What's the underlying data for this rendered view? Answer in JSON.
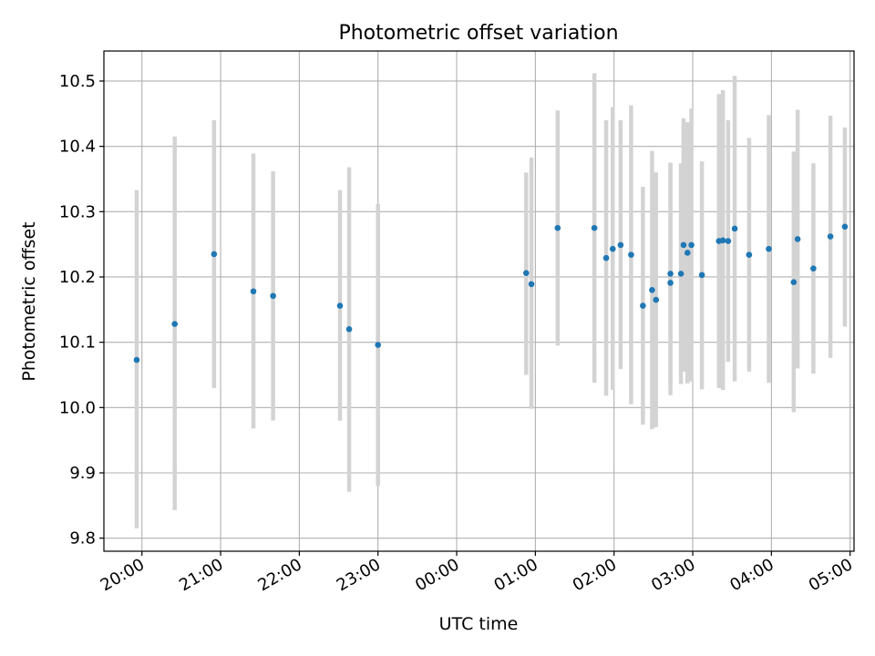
{
  "chart_data": {
    "type": "scatter",
    "title": "Photometric offset variation",
    "xlabel": "UTC time",
    "ylabel": "Photometric offset",
    "x_is_time": true,
    "x_start": "2000-01-01T19:31",
    "x_end": "2000-01-02T05:03",
    "ylim": [
      9.78,
      10.546
    ],
    "grid": true,
    "legend": "none",
    "x_ticks": [
      {
        "label": "20:00",
        "t": "2000-01-01T20:00"
      },
      {
        "label": "21:00",
        "t": "2000-01-01T21:00"
      },
      {
        "label": "22:00",
        "t": "2000-01-01T22:00"
      },
      {
        "label": "23:00",
        "t": "2000-01-01T23:00"
      },
      {
        "label": "00:00",
        "t": "2000-01-02T00:00"
      },
      {
        "label": "01:00",
        "t": "2000-01-02T01:00"
      },
      {
        "label": "02:00",
        "t": "2000-01-02T02:00"
      },
      {
        "label": "03:00",
        "t": "2000-01-02T03:00"
      },
      {
        "label": "04:00",
        "t": "2000-01-02T04:00"
      },
      {
        "label": "05:00",
        "t": "2000-01-02T05:00"
      }
    ],
    "y_ticks": [
      {
        "label": "9.8",
        "v": 9.8
      },
      {
        "label": "9.9",
        "v": 9.9
      },
      {
        "label": "10.0",
        "v": 10.0
      },
      {
        "label": "10.1",
        "v": 10.1
      },
      {
        "label": "10.2",
        "v": 10.2
      },
      {
        "label": "10.3",
        "v": 10.3
      },
      {
        "label": "10.4",
        "v": 10.4
      },
      {
        "label": "10.5",
        "v": 10.5
      }
    ],
    "colors": {
      "point": "#1f77b4",
      "errorbar": "#d3d3d3",
      "grid": "#b0b0b0",
      "axes": "#000000"
    },
    "points": [
      {
        "t": "2000-01-01T19:56",
        "y": 10.073,
        "lo": 9.815,
        "hi": 10.333
      },
      {
        "t": "2000-01-01T20:25",
        "y": 10.128,
        "lo": 9.843,
        "hi": 10.415
      },
      {
        "t": "2000-01-01T20:55",
        "y": 10.235,
        "lo": 10.03,
        "hi": 10.44
      },
      {
        "t": "2000-01-01T21:25",
        "y": 10.178,
        "lo": 9.968,
        "hi": 10.389
      },
      {
        "t": "2000-01-01T21:40",
        "y": 10.171,
        "lo": 9.98,
        "hi": 10.362
      },
      {
        "t": "2000-01-01T22:31",
        "y": 10.156,
        "lo": 9.98,
        "hi": 10.333
      },
      {
        "t": "2000-01-01T22:38",
        "y": 10.12,
        "lo": 9.871,
        "hi": 10.368
      },
      {
        "t": "2000-01-01T23:00",
        "y": 10.096,
        "lo": 9.88,
        "hi": 10.312
      },
      {
        "t": "2000-01-02T00:53",
        "y": 10.206,
        "lo": 10.05,
        "hi": 10.36
      },
      {
        "t": "2000-01-02T00:57",
        "y": 10.189,
        "lo": 9.998,
        "hi": 10.383
      },
      {
        "t": "2000-01-02T01:17",
        "y": 10.275,
        "lo": 10.095,
        "hi": 10.455
      },
      {
        "t": "2000-01-02T01:45",
        "y": 10.275,
        "lo": 10.038,
        "hi": 10.512
      },
      {
        "t": "2000-01-02T01:54",
        "y": 10.229,
        "lo": 10.018,
        "hi": 10.44
      },
      {
        "t": "2000-01-02T01:59",
        "y": 10.243,
        "lo": 10.027,
        "hi": 10.46
      },
      {
        "t": "2000-01-02T02:05",
        "y": 10.249,
        "lo": 10.059,
        "hi": 10.44
      },
      {
        "t": "2000-01-02T02:13",
        "y": 10.234,
        "lo": 10.005,
        "hi": 10.463
      },
      {
        "t": "2000-01-02T02:22",
        "y": 10.156,
        "lo": 9.974,
        "hi": 10.338
      },
      {
        "t": "2000-01-02T02:29",
        "y": 10.18,
        "lo": 9.967,
        "hi": 10.393
      },
      {
        "t": "2000-01-02T02:32",
        "y": 10.165,
        "lo": 9.97,
        "hi": 10.36
      },
      {
        "t": "2000-01-02T02:43",
        "y": 10.205,
        "lo": 10.035,
        "hi": 10.375
      },
      {
        "t": "2000-01-02T02:43",
        "y": 10.191,
        "lo": 10.019,
        "hi": 10.374
      },
      {
        "t": "2000-01-02T02:51",
        "y": 10.205,
        "lo": 10.036,
        "hi": 10.374
      },
      {
        "t": "2000-01-02T02:53",
        "y": 10.249,
        "lo": 10.055,
        "hi": 10.443
      },
      {
        "t": "2000-01-02T02:56",
        "y": 10.237,
        "lo": 10.037,
        "hi": 10.437
      },
      {
        "t": "2000-01-02T02:59",
        "y": 10.249,
        "lo": 10.04,
        "hi": 10.458
      },
      {
        "t": "2000-01-02T03:07",
        "y": 10.203,
        "lo": 10.028,
        "hi": 10.377
      },
      {
        "t": "2000-01-02T03:20",
        "y": 10.255,
        "lo": 10.03,
        "hi": 10.48
      },
      {
        "t": "2000-01-02T03:23",
        "y": 10.256,
        "lo": 10.027,
        "hi": 10.486
      },
      {
        "t": "2000-01-02T03:27",
        "y": 10.255,
        "lo": 10.07,
        "hi": 10.44
      },
      {
        "t": "2000-01-02T03:32",
        "y": 10.274,
        "lo": 10.04,
        "hi": 10.508
      },
      {
        "t": "2000-01-02T03:43",
        "y": 10.234,
        "lo": 10.055,
        "hi": 10.413
      },
      {
        "t": "2000-01-02T03:58",
        "y": 10.243,
        "lo": 10.038,
        "hi": 10.448
      },
      {
        "t": "2000-01-02T04:17",
        "y": 10.192,
        "lo": 9.993,
        "hi": 10.392
      },
      {
        "t": "2000-01-02T04:20",
        "y": 10.258,
        "lo": 10.06,
        "hi": 10.456
      },
      {
        "t": "2000-01-02T04:32",
        "y": 10.213,
        "lo": 10.052,
        "hi": 10.374
      },
      {
        "t": "2000-01-02T04:45",
        "y": 10.262,
        "lo": 10.076,
        "hi": 10.447
      },
      {
        "t": "2000-01-02T04:56",
        "y": 10.277,
        "lo": 10.124,
        "hi": 10.429
      }
    ]
  }
}
